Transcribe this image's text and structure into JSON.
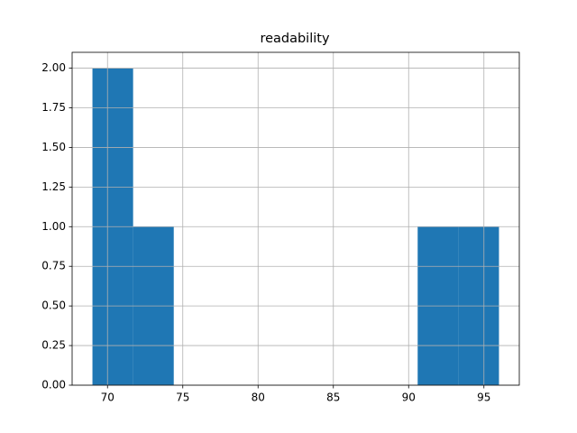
{
  "chart_data": {
    "type": "histogram",
    "title": "readability",
    "bins": [
      69,
      71.7,
      74.4,
      77.1,
      79.8,
      82.5,
      85.2,
      87.9,
      90.6,
      93.3,
      96
    ],
    "values": [
      2,
      1,
      0,
      0,
      0,
      0,
      0,
      0,
      1,
      1
    ],
    "color": "#1f77b4",
    "xlim": [
      67.65,
      97.35
    ],
    "xticks": [
      70,
      75,
      80,
      85,
      90,
      95
    ],
    "ylim": [
      0,
      2.1
    ],
    "yticks": [
      {
        "value": 0,
        "label": "0.00"
      },
      {
        "value": 0.25,
        "label": "0.25"
      },
      {
        "value": 0.5,
        "label": "0.50"
      },
      {
        "value": 0.75,
        "label": "0.75"
      },
      {
        "value": 1,
        "label": "1.00"
      },
      {
        "value": 1.25,
        "label": "1.25"
      },
      {
        "value": 1.5,
        "label": "1.50"
      },
      {
        "value": 1.75,
        "label": "1.75"
      },
      {
        "value": 2,
        "label": "2.00"
      }
    ],
    "grid": true
  }
}
